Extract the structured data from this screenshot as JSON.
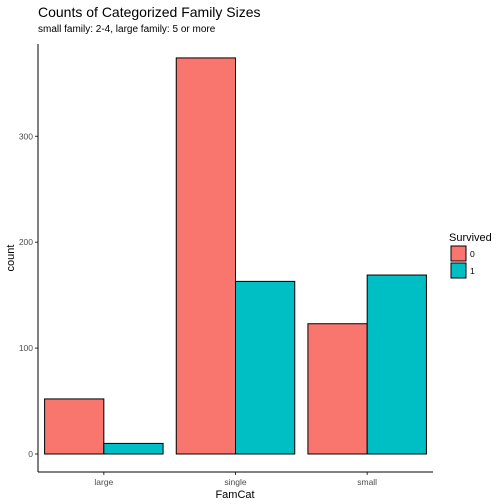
{
  "chart_data": {
    "type": "bar",
    "title": "Counts of Categorized Family Sizes",
    "subtitle": "small family: 2-4, large family: 5 or more",
    "xlabel": "FamCat",
    "ylabel": "count",
    "categories": [
      "large",
      "single",
      "small"
    ],
    "series": [
      {
        "name": "0",
        "color": "#F8766D",
        "values": [
          52,
          374,
          123
        ]
      },
      {
        "name": "1",
        "color": "#00BFC4",
        "values": [
          10,
          163,
          169
        ]
      }
    ],
    "ylim": [
      0,
      400
    ],
    "yticks": [
      0,
      100,
      200,
      300
    ],
    "legend": {
      "title": "Survived",
      "position": "right"
    },
    "grid": false
  }
}
